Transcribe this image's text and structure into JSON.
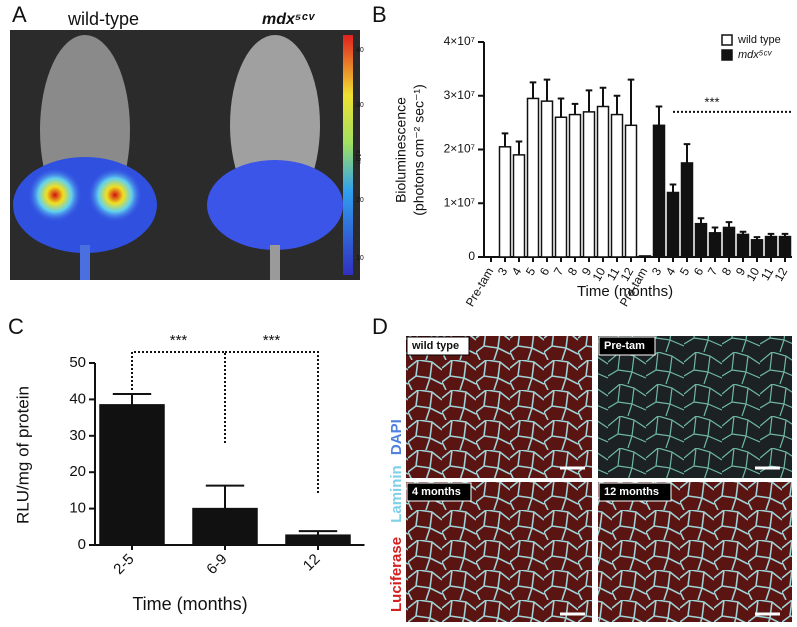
{
  "images": [
    {
      "label": "A",
      "texts": [
        "wild-type",
        "mdx⁵ᶜᵛ"
      ],
      "colorbar_ticks": [
        "40",
        "30",
        "20",
        "10"
      ],
      "colorbar_unit": "x10⁷"
    },
    {
      "label": "D",
      "texts": [
        "wild type",
        "Pre-tam",
        "4 months",
        "12 months"
      ],
      "stain_labels": [
        "Luciferase",
        "Laminin",
        "DAPI"
      ]
    }
  ],
  "chart_data": [
    {
      "type": "bar",
      "label": "B",
      "ylabel": "Bioluminescence",
      "ylabel_units": "(photons cm⁻² sec⁻¹)",
      "xlabel": "Time (months)",
      "categories": [
        "Pre-tam",
        "3",
        "4",
        "5",
        "6",
        "7",
        "8",
        "9",
        "10",
        "11",
        "12",
        "Pre-tam",
        "3",
        "4",
        "5",
        "6",
        "7",
        "8",
        "9",
        "10",
        "11",
        "12"
      ],
      "series": [
        {
          "name": "wild type",
          "color": "#ffffff",
          "values": [
            0,
            20500000,
            19000000,
            29500000,
            29000000,
            26000000,
            26500000,
            27000000,
            28000000,
            26500000,
            24500000,
            null,
            null,
            null,
            null,
            null,
            null,
            null,
            null,
            null,
            null,
            null
          ],
          "errors": [
            null,
            2500000,
            2500000,
            3000000,
            4000000,
            3500000,
            2000000,
            4000000,
            3500000,
            3500000,
            8500000,
            null,
            null,
            null,
            null,
            null,
            null,
            null,
            null,
            null,
            null,
            null
          ]
        },
        {
          "name": "mdx⁵ᶜᵛ",
          "color": "#111111",
          "values": [
            null,
            null,
            null,
            null,
            null,
            null,
            null,
            null,
            null,
            null,
            null,
            200000,
            24500000,
            12000000,
            17500000,
            6200000,
            4500000,
            5500000,
            4200000,
            3200000,
            3800000,
            3800000
          ],
          "errors": [
            null,
            null,
            null,
            null,
            null,
            null,
            null,
            null,
            null,
            null,
            null,
            null,
            3500000,
            1500000,
            3500000,
            1000000,
            1000000,
            1000000,
            500000,
            500000,
            500000,
            500000
          ]
        }
      ],
      "ylim": [
        0,
        40000000
      ],
      "yticks": [
        0,
        {
          "value": 10000000,
          "label": "1×10⁷"
        },
        {
          "value": 20000000,
          "label": "2×10⁷"
        },
        {
          "value": 30000000,
          "label": "3×10⁷"
        },
        {
          "value": 40000000,
          "label": "4×10⁷"
        }
      ],
      "annotations": [
        "***"
      ],
      "legend": "upper right"
    },
    {
      "type": "bar",
      "label": "C",
      "ylabel": "RLU/mg of protein",
      "xlabel": "Time (months)",
      "categories": [
        "2-5",
        "6-9",
        "12"
      ],
      "values": [
        38.5,
        10,
        2.7
      ],
      "errors": [
        3,
        6.3,
        1.1
      ],
      "color": "#111111",
      "ylim": [
        0,
        50
      ],
      "yticks": [
        0,
        10,
        20,
        30,
        40,
        50
      ],
      "annotations": [
        "***",
        "***"
      ]
    }
  ]
}
